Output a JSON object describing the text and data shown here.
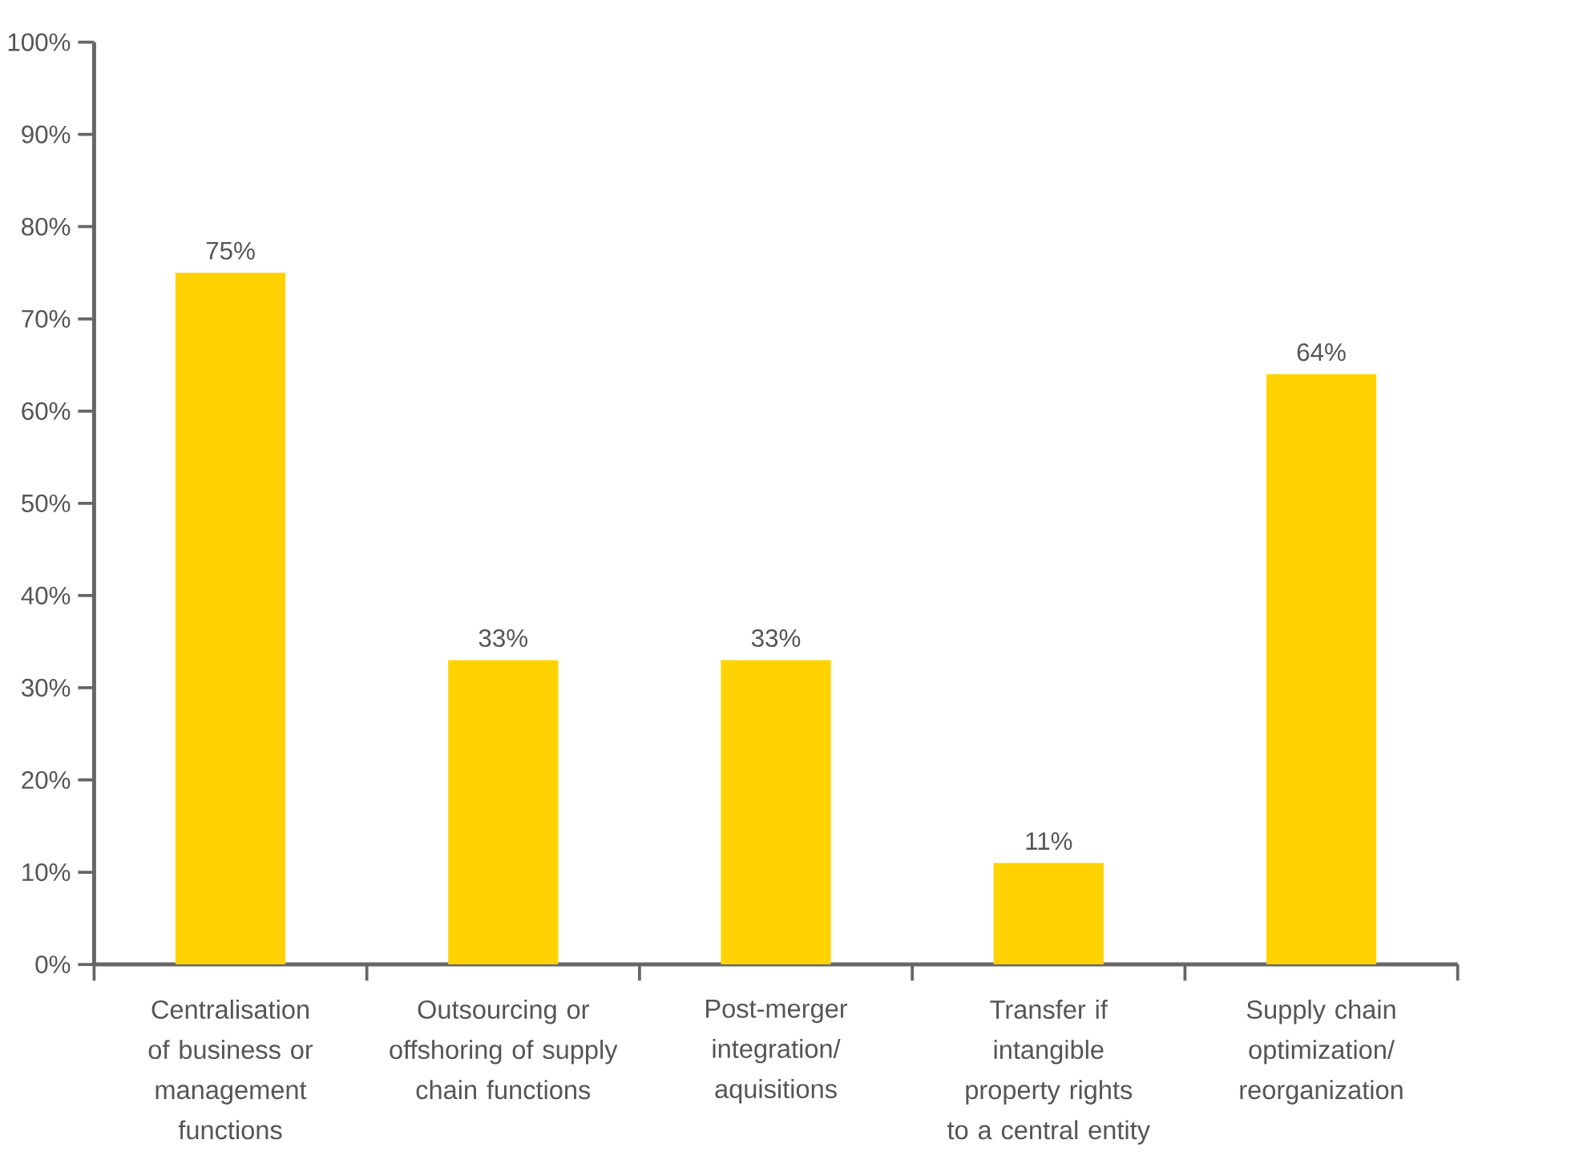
{
  "chart_data": {
    "type": "bar",
    "categories": [
      "Centralisation of business or management functions",
      "Outsourcing or offshoring of supply chain functions",
      "Post-merger integration/ aquisitions",
      "Transfer if intangible property rights to a central entity",
      "Supply chain optimization/ reorganization"
    ],
    "values": [
      75,
      33,
      33,
      11,
      64
    ],
    "value_labels": [
      "75%",
      "33%",
      "33%",
      "11%",
      "64%"
    ],
    "color": "#ffd200",
    "ylim": [
      0,
      100
    ],
    "yticks": [
      {
        "value": 0,
        "label": "0%"
      },
      {
        "value": 10,
        "label": "10%"
      },
      {
        "value": 20,
        "label": "20%"
      },
      {
        "value": 30,
        "label": "30%"
      },
      {
        "value": 40,
        "label": "40%"
      },
      {
        "value": 50,
        "label": "50%"
      },
      {
        "value": 60,
        "label": "60%"
      },
      {
        "value": 70,
        "label": "70%"
      },
      {
        "value": 80,
        "label": "80%"
      },
      {
        "value": 90,
        "label": "90%"
      },
      {
        "value": 100,
        "label": "100%"
      }
    ]
  }
}
